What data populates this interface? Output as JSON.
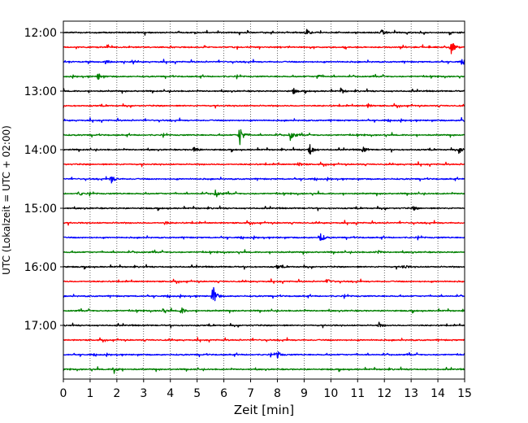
{
  "chart_data": {
    "type": "line",
    "title": "",
    "xlabel": "Zeit  [min]",
    "ylabel": "UTC (Lokalzeit = UTC + 02:00)",
    "xlim": [
      0,
      15
    ],
    "x_ticks": [
      "0",
      "1",
      "2",
      "3",
      "4",
      "5",
      "6",
      "7",
      "8",
      "9",
      "10",
      "11",
      "12",
      "13",
      "14",
      "15"
    ],
    "y_ticks": [
      "12:00",
      "13:00",
      "14:00",
      "15:00",
      "16:00",
      "17:00"
    ],
    "grid": "x dotted",
    "trace_interval_min": 15,
    "trace_colors": [
      "#000000",
      "#ff0000",
      "#0000ff",
      "#008000"
    ],
    "traces": [
      {
        "start": "12:00",
        "events": [
          {
            "t": 9.1,
            "amp": 0.35
          },
          {
            "t": 11.9,
            "amp": 0.4
          }
        ]
      },
      {
        "start": "12:15",
        "events": [
          {
            "t": 14.5,
            "amp": 0.95
          }
        ]
      },
      {
        "start": "12:30",
        "events": [
          {
            "t": 1.6,
            "amp": 0.3
          },
          {
            "t": 14.9,
            "amp": 0.3
          }
        ]
      },
      {
        "start": "12:45",
        "events": [
          {
            "t": 1.3,
            "amp": 0.45
          },
          {
            "t": 9.5,
            "amp": 0.3
          }
        ]
      },
      {
        "start": "13:00",
        "events": [
          {
            "t": 8.6,
            "amp": 0.35
          },
          {
            "t": 10.4,
            "amp": 0.3
          }
        ]
      },
      {
        "start": "13:15",
        "events": [
          {
            "t": 11.4,
            "amp": 0.25
          }
        ]
      },
      {
        "start": "13:30",
        "events": [
          {
            "t": 14.9,
            "amp": 0.45
          }
        ]
      },
      {
        "start": "13:45",
        "events": [
          {
            "t": 6.6,
            "amp": 1.3
          },
          {
            "t": 8.5,
            "amp": 0.9
          }
        ]
      },
      {
        "start": "14:00",
        "events": [
          {
            "t": 9.2,
            "amp": 1.0
          },
          {
            "t": 4.9,
            "amp": 0.45
          },
          {
            "t": 11.2,
            "amp": 0.45
          },
          {
            "t": 14.8,
            "amp": 0.45
          }
        ]
      },
      {
        "start": "14:15",
        "events": [
          {
            "t": 8.8,
            "amp": 0.3
          }
        ]
      },
      {
        "start": "14:30",
        "events": [
          {
            "t": 1.8,
            "amp": 0.6
          }
        ]
      },
      {
        "start": "14:45",
        "events": [
          {
            "t": 5.7,
            "amp": 0.55
          },
          {
            "t": 0.6,
            "amp": 0.25
          }
        ]
      },
      {
        "start": "15:00",
        "events": [
          {
            "t": 13.1,
            "amp": 0.25
          }
        ]
      },
      {
        "start": "15:15",
        "events": [
          {
            "t": 3.8,
            "amp": 0.2
          }
        ]
      },
      {
        "start": "15:30",
        "events": [
          {
            "t": 9.6,
            "amp": 0.75
          }
        ]
      },
      {
        "start": "15:45",
        "events": [
          {
            "t": 11.7,
            "amp": 0.3
          }
        ]
      },
      {
        "start": "16:00",
        "events": [
          {
            "t": 8.0,
            "amp": 0.3
          },
          {
            "t": 12.7,
            "amp": 0.3
          }
        ]
      },
      {
        "start": "16:15",
        "events": [
          {
            "t": 9.9,
            "amp": 0.25
          }
        ]
      },
      {
        "start": "16:30",
        "events": [
          {
            "t": 5.6,
            "amp": 1.4
          }
        ]
      },
      {
        "start": "16:45",
        "events": [
          {
            "t": 4.4,
            "amp": 0.5
          },
          {
            "t": 3.7,
            "amp": 0.3
          }
        ]
      },
      {
        "start": "17:00",
        "events": [
          {
            "t": 11.8,
            "amp": 0.35
          }
        ]
      },
      {
        "start": "17:15",
        "events": []
      },
      {
        "start": "17:30",
        "events": [
          {
            "t": 8.0,
            "amp": 0.45
          }
        ]
      },
      {
        "start": "17:45",
        "events": [
          {
            "t": 1.9,
            "amp": 0.55
          }
        ]
      }
    ]
  }
}
